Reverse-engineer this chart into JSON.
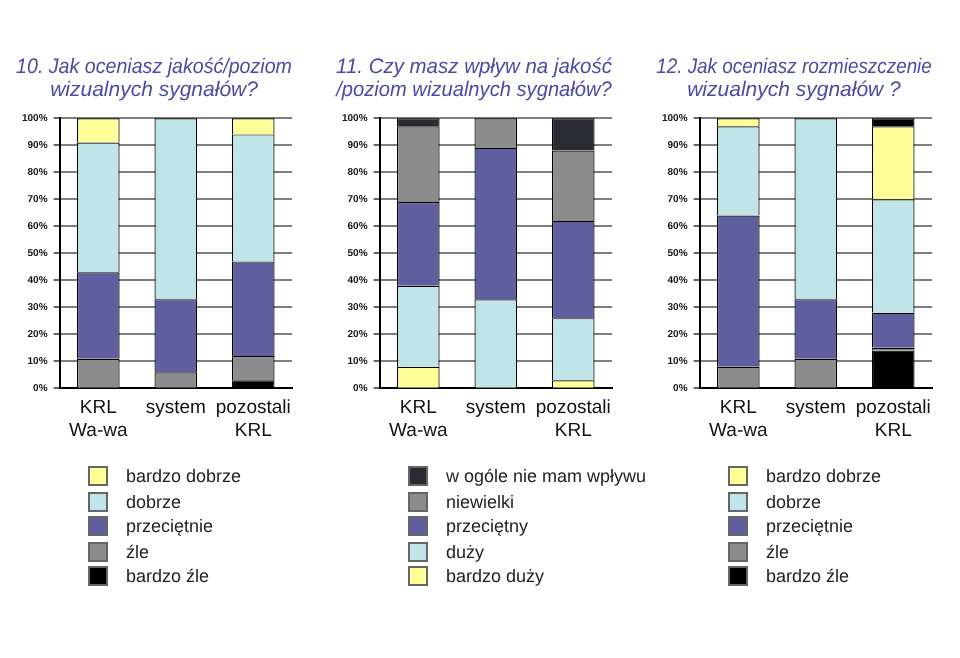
{
  "chart_data": [
    {
      "type": "bar",
      "title": "10. Jak oceniasz jakość/poziom\nwizualnych sygnałów?",
      "categories": [
        "KRL Wa-wa",
        "system",
        "pozostali KRL"
      ],
      "stacked": true,
      "grid": "y",
      "legend": "bottom",
      "ylim": [
        0,
        100
      ],
      "yticks": [
        {
          "value": 0,
          "label": "0%"
        },
        {
          "value": 10,
          "label": "10%"
        },
        {
          "value": 20,
          "label": "20%"
        },
        {
          "value": 30,
          "label": "30%"
        },
        {
          "value": 40,
          "label": "40%"
        },
        {
          "value": 50,
          "label": "50%"
        },
        {
          "value": 60,
          "label": "60%"
        },
        {
          "value": 70,
          "label": "70%"
        },
        {
          "value": 80,
          "label": "80%"
        },
        {
          "value": 90,
          "label": "90%"
        },
        {
          "value": 100,
          "label": "100%"
        }
      ],
      "series": [
        {
          "name": "bardzo źle",
          "color": "#000000",
          "values": [
            0,
            0,
            3
          ]
        },
        {
          "name": "źle",
          "color": "#8c8c8c",
          "values": [
            11,
            6,
            9
          ]
        },
        {
          "name": "przeciętnie",
          "color": "#5f5f9f",
          "values": [
            32,
            27,
            35
          ]
        },
        {
          "name": "dobrze",
          "color": "#bfe5e8",
          "values": [
            48,
            67,
            47
          ]
        },
        {
          "name": "bardzo dobrze",
          "color": "#ffff99",
          "values": [
            9,
            0,
            6
          ]
        }
      ]
    },
    {
      "type": "bar",
      "title": "11. Czy masz wpływ na jakość\n/poziom wizualnych sygnałów?",
      "categories": [
        "KRL Wa-wa",
        "system",
        "pozostali KRL"
      ],
      "stacked": true,
      "grid": "y",
      "legend": "bottom",
      "ylim": [
        0,
        100
      ],
      "yticks": [
        {
          "value": 0,
          "label": "0%"
        },
        {
          "value": 10,
          "label": "10%"
        },
        {
          "value": 20,
          "label": "20%"
        },
        {
          "value": 30,
          "label": "30%"
        },
        {
          "value": 40,
          "label": "40%"
        },
        {
          "value": 50,
          "label": "50%"
        },
        {
          "value": 60,
          "label": "60%"
        },
        {
          "value": 70,
          "label": "70%"
        },
        {
          "value": 80,
          "label": "80%"
        },
        {
          "value": 90,
          "label": "90%"
        },
        {
          "value": 100,
          "label": "100%"
        }
      ],
      "series": [
        {
          "name": "bardzo duży",
          "color": "#ffff99",
          "values": [
            8,
            0,
            3
          ]
        },
        {
          "name": "duży",
          "color": "#bfe5e8",
          "values": [
            30,
            33,
            23
          ]
        },
        {
          "name": "przeciętny",
          "color": "#5f5f9f",
          "values": [
            31,
            56,
            36
          ]
        },
        {
          "name": "niewielki",
          "color": "#8c8c8c",
          "values": [
            28,
            11,
            26
          ]
        },
        {
          "name": "w ogóle nie mam wpływu",
          "color": "#2a2a35",
          "values": [
            3,
            0,
            12
          ]
        }
      ]
    },
    {
      "type": "bar",
      "title": "12. Jak oceniasz rozmieszczenie\nwizualnych sygnałów ?",
      "categories": [
        "KRL Wa-wa",
        "system",
        "pozostali KRL"
      ],
      "stacked": true,
      "grid": "y",
      "legend": "bottom",
      "ylim": [
        0,
        100
      ],
      "yticks": [
        {
          "value": 0,
          "label": "0%"
        },
        {
          "value": 10,
          "label": "10%"
        },
        {
          "value": 20,
          "label": "20%"
        },
        {
          "value": 30,
          "label": "30%"
        },
        {
          "value": 40,
          "label": "40%"
        },
        {
          "value": 50,
          "label": "50%"
        },
        {
          "value": 60,
          "label": "60%"
        },
        {
          "value": 70,
          "label": "70%"
        },
        {
          "value": 80,
          "label": "80%"
        },
        {
          "value": 90,
          "label": "90%"
        },
        {
          "value": 100,
          "label": "100%"
        }
      ],
      "series": [
        {
          "name": "bardzo źle",
          "color": "#000000",
          "values": [
            0,
            0,
            14
          ]
        },
        {
          "name": "źle",
          "color": "#8c8c8c",
          "values": [
            8,
            11,
            1
          ]
        },
        {
          "name": "przeciętnie",
          "color": "#5f5f9f",
          "values": [
            56,
            22,
            13
          ]
        },
        {
          "name": "dobrze",
          "color": "#bfe5e8",
          "values": [
            33,
            67,
            42
          ]
        },
        {
          "name": "bardzo dobrze",
          "color": "#ffff99",
          "values": [
            3,
            0,
            27
          ]
        },
        {
          "color": "#000000",
          "values": [
            0,
            0,
            3
          ]
        }
      ]
    }
  ]
}
